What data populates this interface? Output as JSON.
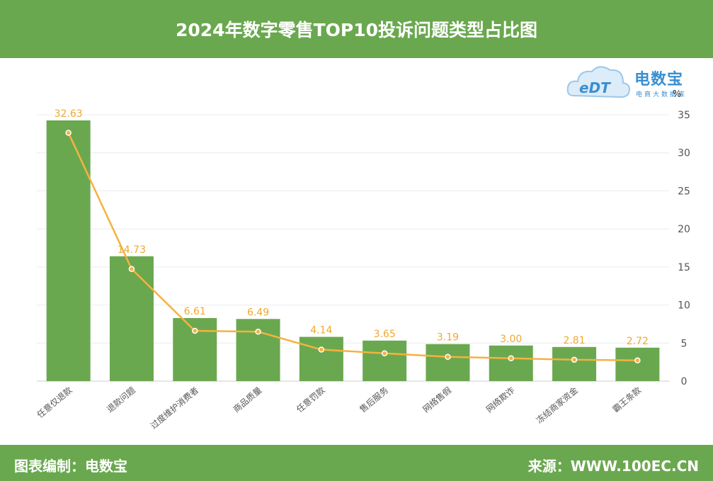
{
  "header": {
    "title": "2024年数字零售TOP10投诉问题类型占比图"
  },
  "logo": {
    "name": "电数宝",
    "sub": "电商大数据库",
    "mark": "eDT"
  },
  "footer": {
    "left": "图表编制：电数宝",
    "right": "来源：WWW.100EC.CN"
  },
  "colors": {
    "bar": "#6aa84f",
    "line": "#f5b240",
    "header": "#6aa84f"
  },
  "chart_data": {
    "type": "bar",
    "title": "2024年数字零售TOP10投诉问题类型占比图",
    "ylabel": "%",
    "ylim": [
      0,
      35
    ],
    "yticks": [
      0,
      5,
      10,
      15,
      20,
      25,
      30,
      35
    ],
    "y_axis_position": "right",
    "grid": true,
    "categories": [
      "任意仅退款",
      "退款问题",
      "过度维护消费者",
      "商品质量",
      "任意罚款",
      "售后服务",
      "网络售假",
      "网络欺诈",
      "冻结商家资金",
      "霸王条款"
    ],
    "series": [
      {
        "type": "bar",
        "values": [
          32.63,
          14.73,
          6.61,
          6.49,
          4.14,
          3.65,
          3.19,
          3.0,
          2.81,
          2.72
        ]
      },
      {
        "type": "line",
        "values": [
          32.63,
          14.73,
          6.61,
          6.49,
          4.14,
          3.65,
          3.19,
          3.0,
          2.81,
          2.72
        ]
      }
    ],
    "data_labels": [
      "32.63",
      "14.73",
      "6.61",
      "6.49",
      "4.14",
      "3.65",
      "3.19",
      "3.00",
      "2.81",
      "2.72"
    ]
  }
}
